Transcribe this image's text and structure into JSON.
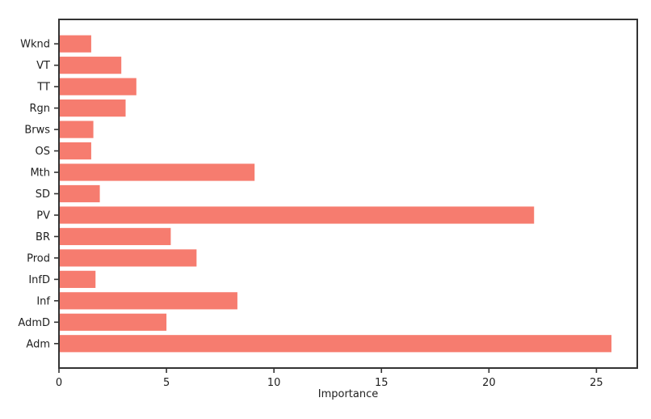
{
  "chart_data": {
    "type": "bar",
    "orientation": "horizontal",
    "title": "",
    "xlabel": "Importance",
    "ylabel": "",
    "categories_top_to_bottom": [
      "Wknd",
      "VT",
      "TT",
      "Rgn",
      "Brws",
      "OS",
      "Mth",
      "SD",
      "PV",
      "BR",
      "Prod",
      "InfD",
      "Inf",
      "AdmD",
      "Adm"
    ],
    "values": [
      1.5,
      2.9,
      3.6,
      3.1,
      1.6,
      1.5,
      9.1,
      1.9,
      22.1,
      5.2,
      6.4,
      1.7,
      8.3,
      5.0,
      25.7
    ],
    "x_ticks": [
      "0",
      "5",
      "10",
      "15",
      "20",
      "25"
    ],
    "x_tick_values": [
      0,
      5,
      10,
      15,
      20,
      25
    ],
    "xlim": [
      0,
      26.9
    ],
    "grid": false,
    "legend_position": "none",
    "bar_color": "#f67c6f",
    "spine_color": "#333333",
    "text_color": "#1f1f1f",
    "background_color": "#ffffff"
  }
}
